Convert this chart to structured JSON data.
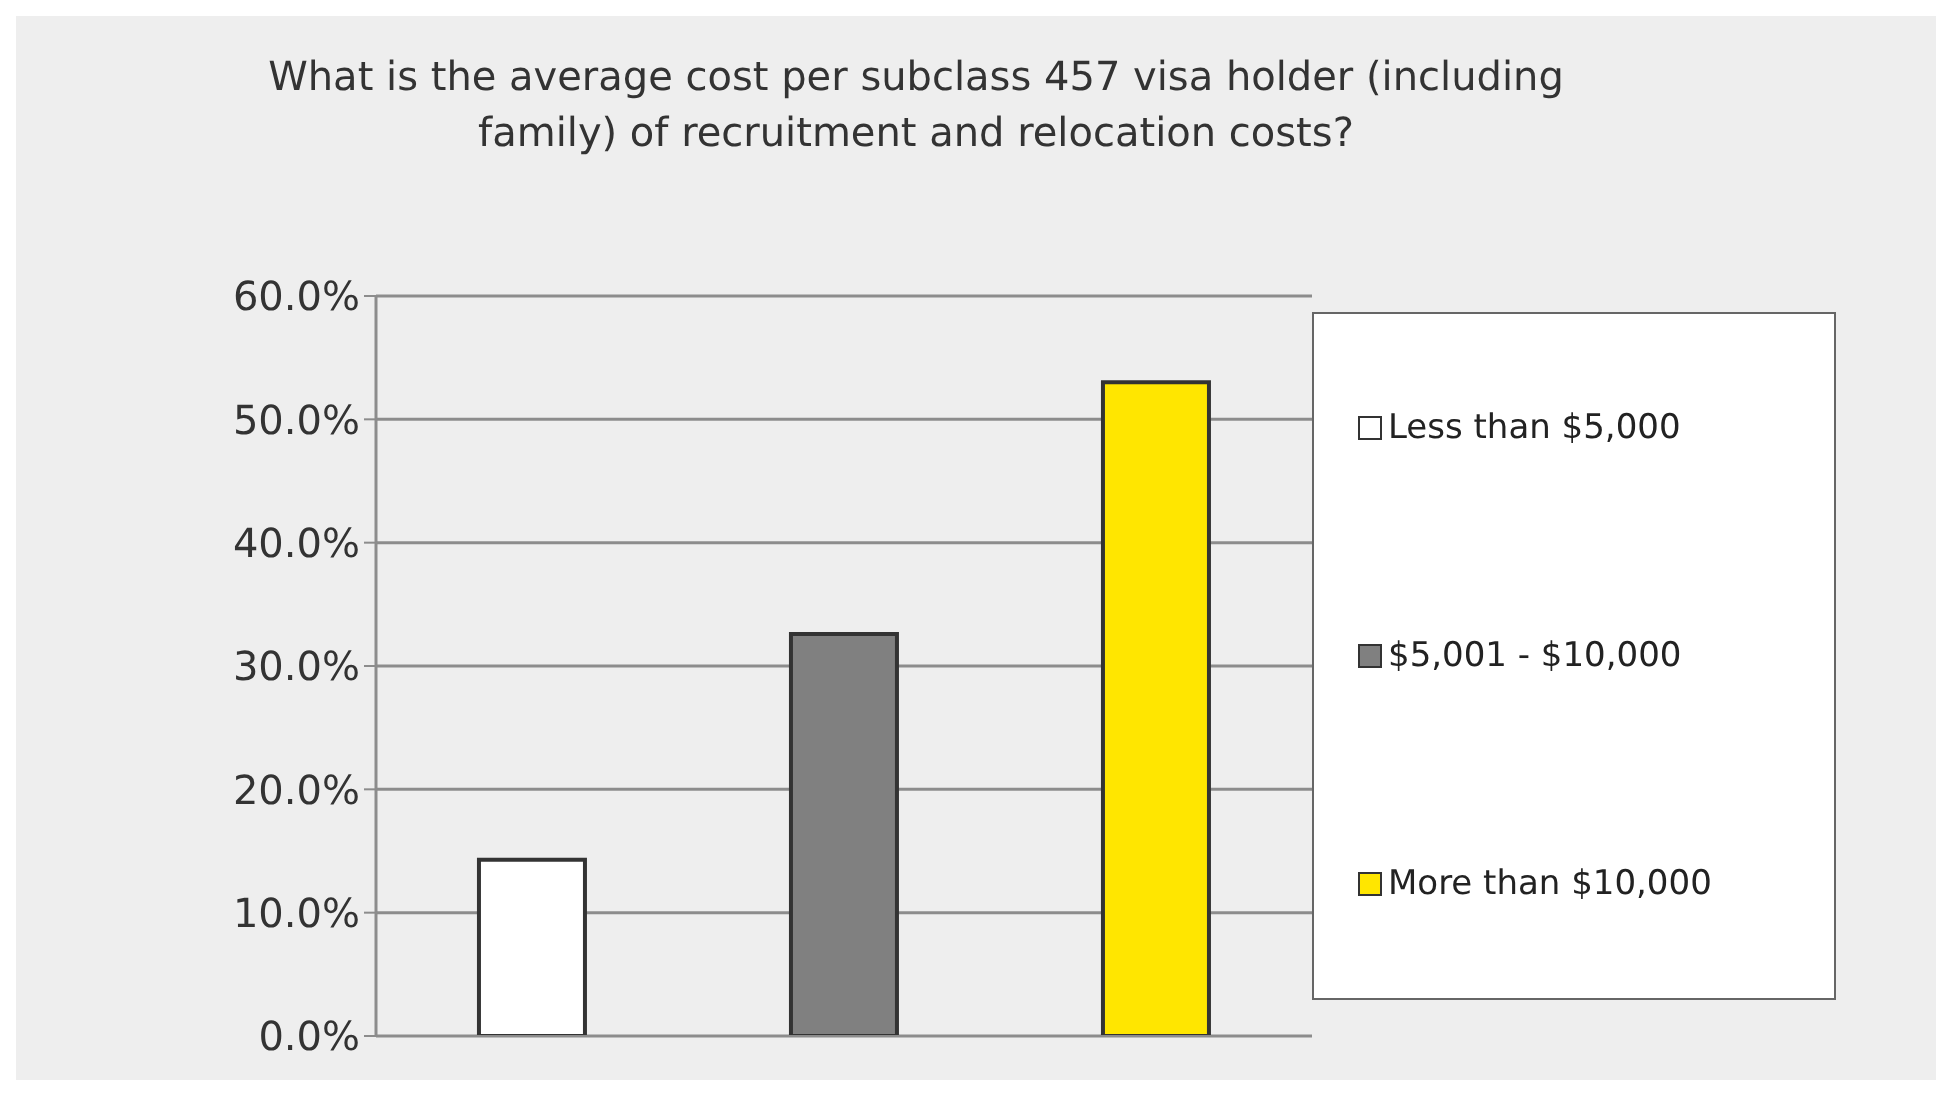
{
  "chart_data": {
    "type": "bar",
    "title": "What is the average cost per subclass 457 visa holder (including family) of recruitment and relocation costs?",
    "categories": [
      null,
      null,
      null
    ],
    "series": [
      {
        "name": "Less than $5,000",
        "color": "#ffffff",
        "values": [
          14.3,
          null,
          null
        ]
      },
      {
        "name": "$5,001 - $10,000",
        "color": "#808080",
        "values": [
          null,
          32.6,
          null
        ]
      },
      {
        "name": "More than $10,000",
        "color": "#ffe600",
        "values": [
          null,
          null,
          53.0
        ]
      }
    ],
    "ylim": [
      0,
      60
    ],
    "yticks": [
      {
        "value": 0,
        "label": "0.0%"
      },
      {
        "value": 10,
        "label": "10.0%"
      },
      {
        "value": 20,
        "label": "20.0%"
      },
      {
        "value": 30,
        "label": "30.0%"
      },
      {
        "value": 40,
        "label": "40.0%"
      },
      {
        "value": 50,
        "label": "50.0%"
      },
      {
        "value": 60,
        "label": "60.0%"
      }
    ],
    "grid": "y",
    "legend": "right"
  }
}
